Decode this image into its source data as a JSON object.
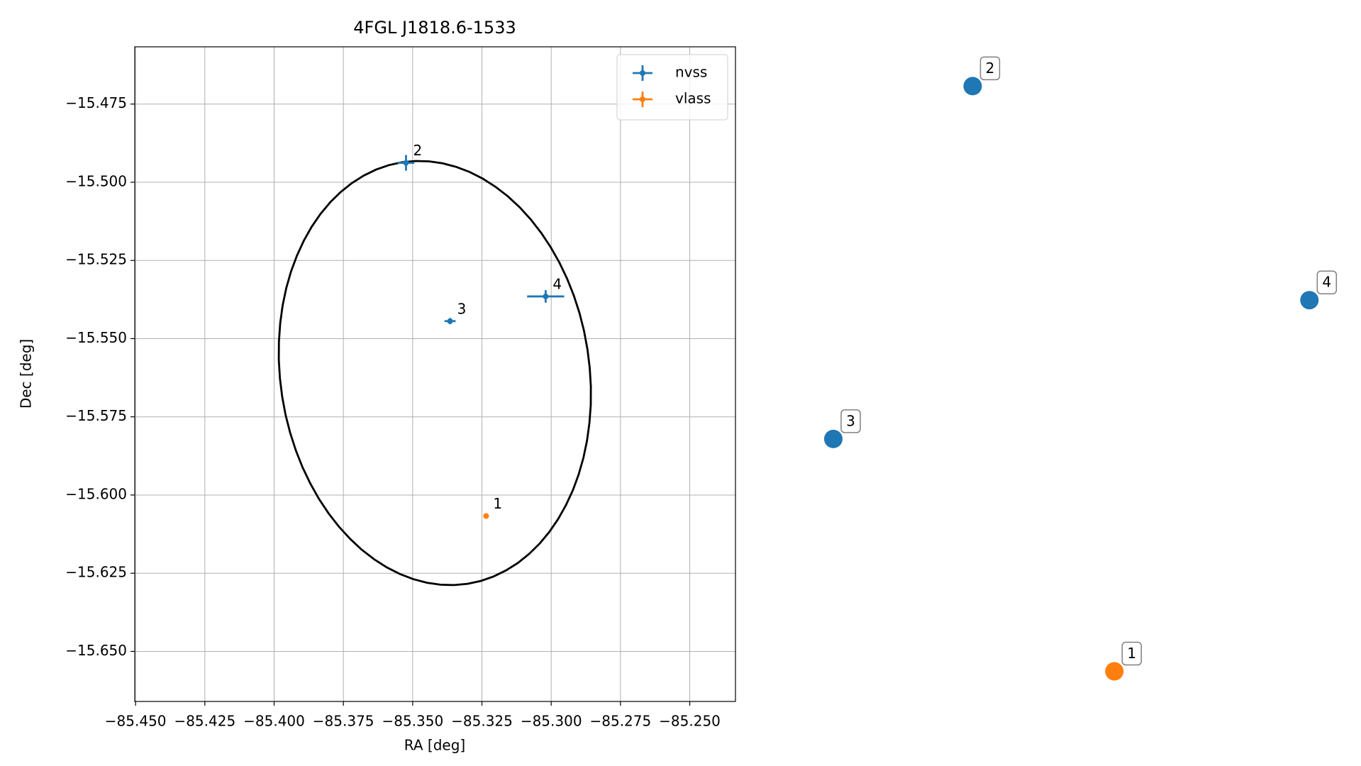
{
  "chart_data": [
    {
      "type": "errorbar",
      "title": "4FGL J1818.6-1533",
      "x_label": "RA [deg]",
      "y_label": "Dec [deg]",
      "xlim": [
        -85.4503,
        -85.2335
      ],
      "ylim": [
        -15.666,
        -15.4567
      ],
      "xticks": [
        {
          "value": -85.45,
          "label": "−85.450"
        },
        {
          "value": -85.425,
          "label": "−85.425"
        },
        {
          "value": -85.4,
          "label": "−85.400"
        },
        {
          "value": -85.375,
          "label": "−85.375"
        },
        {
          "value": -85.35,
          "label": "−85.350"
        },
        {
          "value": -85.325,
          "label": "−85.325"
        },
        {
          "value": -85.3,
          "label": "−85.300"
        },
        {
          "value": -85.275,
          "label": "−85.275"
        },
        {
          "value": -85.25,
          "label": "−85.250"
        }
      ],
      "yticks": [
        {
          "value": -15.475,
          "label": "−15.475"
        },
        {
          "value": -15.5,
          "label": "−15.500"
        },
        {
          "value": -15.525,
          "label": "−15.525"
        },
        {
          "value": -15.55,
          "label": "−15.550"
        },
        {
          "value": -15.575,
          "label": "−15.575"
        },
        {
          "value": -15.6,
          "label": "−15.600"
        },
        {
          "value": -15.625,
          "label": "−15.625"
        },
        {
          "value": -15.65,
          "label": "−15.650"
        }
      ],
      "grid": true,
      "legend": "upper right",
      "series": [
        {
          "name": "nvss",
          "color": "#1f77b4",
          "labels": [
            "2",
            "3",
            "4"
          ],
          "x": [
            -85.3524,
            -85.3365,
            -85.302
          ],
          "values": [
            -15.4938,
            -15.5444,
            -15.5365
          ],
          "xerr": [
            0.003,
            0.002,
            0.0067
          ],
          "yerr": [
            0.0025,
            0.001,
            0.002
          ]
        },
        {
          "name": "vlass",
          "color": "#ff7f0e",
          "labels": [
            "1"
          ],
          "x": [
            -85.3235
          ],
          "values": [
            -15.6067
          ],
          "xerr": [
            0.0005
          ],
          "yerr": [
            0.0005
          ]
        }
      ],
      "ellipse": {
        "center": [
          -85.342,
          -15.561
        ],
        "semi_major": 0.0685,
        "semi_minor": 0.0555,
        "angle": 104,
        "color": "#000000"
      }
    },
    {
      "type": "scatter",
      "xlim": [
        0,
        1
      ],
      "ylim": [
        0,
        1
      ],
      "series": [
        {
          "color": "#1f77b4",
          "labels": [
            "2",
            "3",
            "4"
          ],
          "x": [
            0.351,
            0.116,
            0.919
          ],
          "values": [
            0.94,
            0.401,
            0.613
          ]
        },
        {
          "color": "#ff7f0e",
          "labels": [
            "1"
          ],
          "x": [
            0.59
          ],
          "values": [
            0.046
          ]
        }
      ]
    }
  ]
}
